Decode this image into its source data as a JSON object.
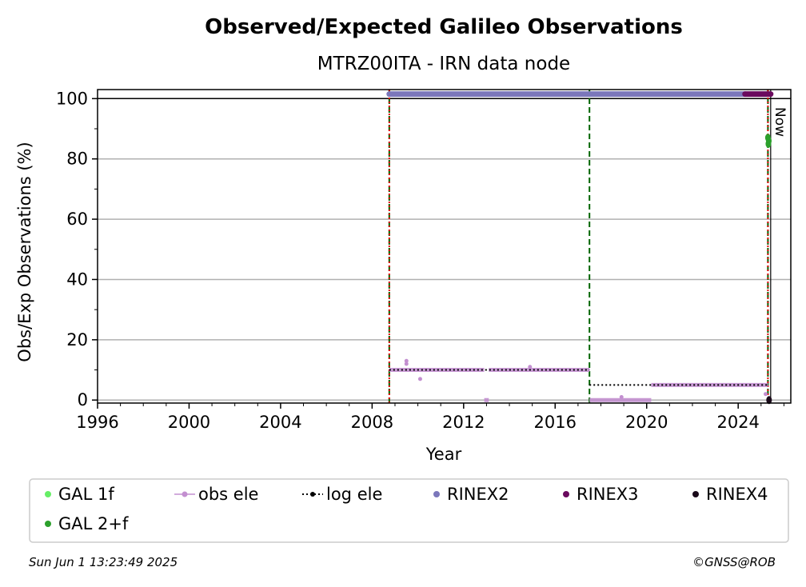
{
  "chart_data": {
    "type": "scatter",
    "title": "Observed/Expected Galileo Observations",
    "subtitle": "MTRZ00ITA - IRN data node",
    "xlabel": "Year",
    "ylabel": "Obs/Exp Observations (%)",
    "xlim": [
      1996,
      2026.3
    ],
    "ylim": [
      -1,
      103
    ],
    "xticks": [
      1996,
      2000,
      2004,
      2008,
      2012,
      2016,
      2020,
      2024
    ],
    "yticks": [
      0,
      20,
      40,
      60,
      80,
      100
    ],
    "grid": "horizontal",
    "now_label": "Now",
    "now_x": 2025.42,
    "reference_line_y": 100,
    "vertical_lines": [
      {
        "x": 2008.75,
        "style": "green dashed + red dotted"
      },
      {
        "x": 2017.5,
        "style": "green dashed"
      },
      {
        "x": 2025.3,
        "style": "green dashed + red dotted"
      }
    ],
    "series": [
      {
        "name": "GAL 1f",
        "color": "#66ee66",
        "points": []
      },
      {
        "name": "obs ele",
        "color": "#c38fd0",
        "segments": [
          {
            "x": [
              2008.75,
              2012.9
            ],
            "y": 10
          },
          {
            "x": [
              2012.9,
              2013.1
            ],
            "y": 0
          },
          {
            "x": [
              2013.1,
              2017.5
            ],
            "y": 10
          },
          {
            "x": [
              2017.5,
              2020.2
            ],
            "y": 0
          },
          {
            "x": [
              2020.2,
              2025.3
            ],
            "y": 5
          }
        ],
        "outliers": [
          {
            "x": 2009.5,
            "y": 13
          },
          {
            "x": 2009.5,
            "y": 12
          },
          {
            "x": 2010.1,
            "y": 7
          },
          {
            "x": 2014.9,
            "y": 11
          },
          {
            "x": 2018.9,
            "y": 1
          },
          {
            "x": 2025.2,
            "y": 2
          }
        ]
      },
      {
        "name": "log ele",
        "color": "#000000",
        "segments": [
          {
            "x": [
              2008.75,
              2017.5
            ],
            "y": 10
          },
          {
            "x": [
              2017.5,
              2025.3
            ],
            "y": 5
          }
        ]
      },
      {
        "name": "RINEX2",
        "color": "#7b77bb",
        "segments": [
          {
            "x": [
              2008.75,
              2024.3
            ],
            "y": 101.5
          }
        ]
      },
      {
        "name": "RINEX3",
        "color": "#6a0a5e",
        "segments": [
          {
            "x": [
              2024.3,
              2025.42
            ],
            "y": 101.5
          }
        ]
      },
      {
        "name": "RINEX4",
        "color": "#1a0a1a",
        "points": [
          {
            "x": 2025.35,
            "y": 0
          }
        ]
      },
      {
        "name": "GAL 2+f",
        "color": "#2ca02c",
        "points": [
          {
            "x": 2025.3,
            "y": 87
          },
          {
            "x": 2025.32,
            "y": 85
          },
          {
            "x": 2025.34,
            "y": 86
          }
        ]
      }
    ],
    "legend": {
      "placement": "bottom",
      "entries": [
        "GAL 1f",
        "obs ele",
        "log ele",
        "RINEX2",
        "RINEX3",
        "RINEX4",
        "GAL 2+f"
      ]
    }
  },
  "footer": {
    "timestamp": "Sun Jun  1 13:23:49 2025",
    "credit": "©GNSS@ROB"
  }
}
